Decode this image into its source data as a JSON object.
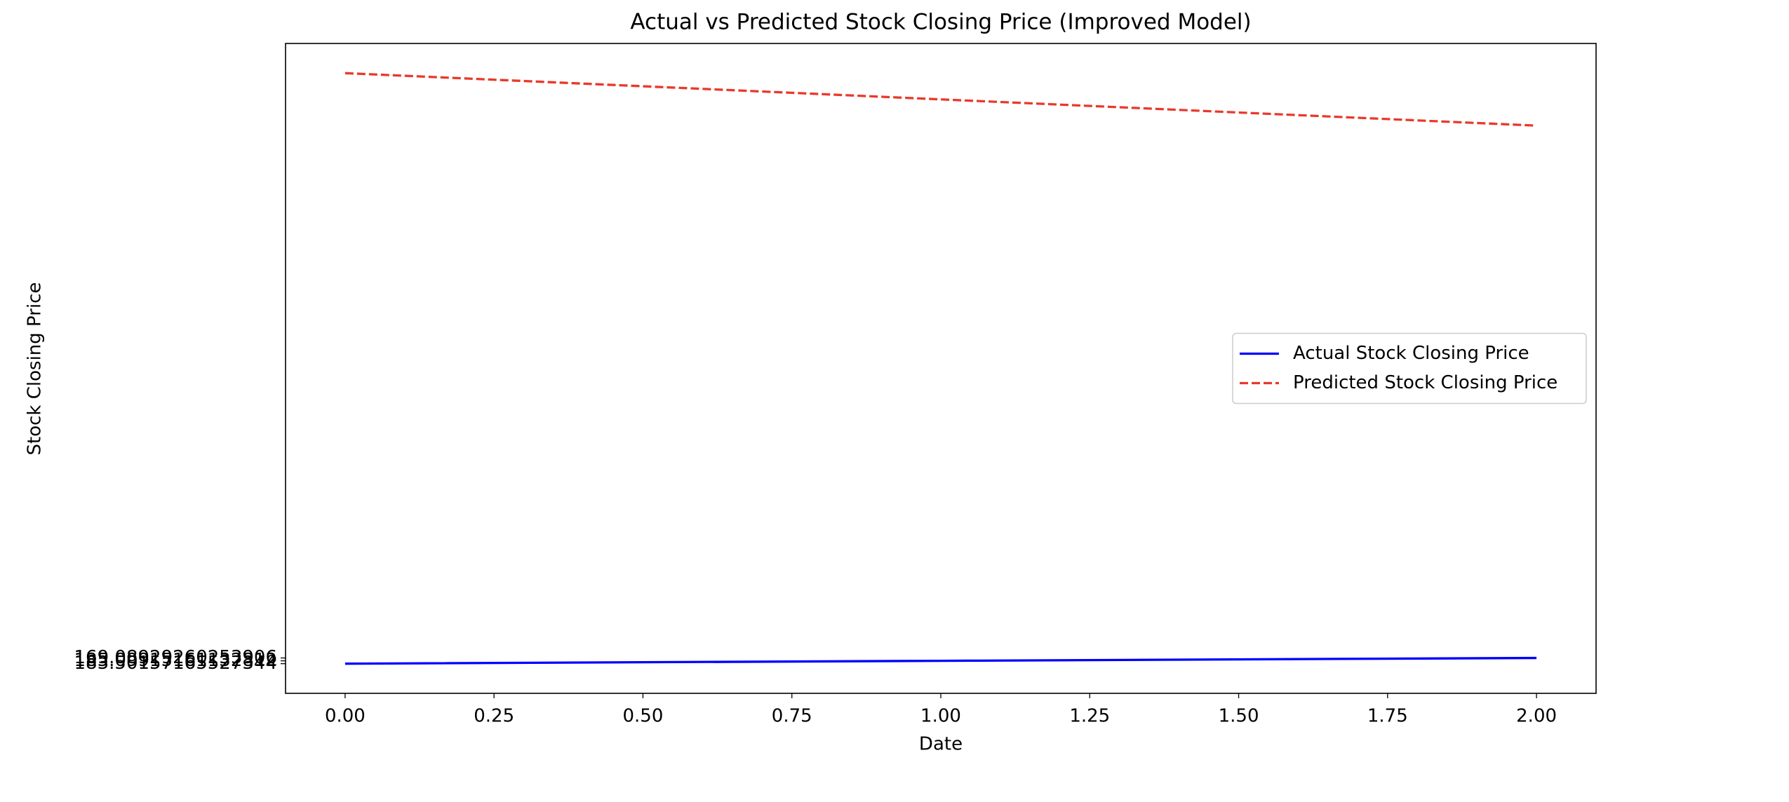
{
  "chart_data": {
    "type": "line",
    "title": "Actual vs Predicted Stock Closing Price (Improved Model)",
    "xlabel": "Date",
    "ylabel": "Stock Closing Price",
    "x": [
      0,
      1,
      2
    ],
    "series": [
      {
        "name": "Actual Stock Closing Price",
        "color": "#0000ff",
        "linestyle": "solid",
        "values": [
          0,
          1,
          2
        ]
      },
      {
        "name": "Predicted Stock Closing Price",
        "color": "#e8392b",
        "linestyle": "dashed",
        "values": [
          207.0,
          197.8,
          188.6
        ]
      }
    ],
    "xlim": [
      -0.1,
      2.1
    ],
    "xticks": [
      {
        "value": 0,
        "label": "0.00"
      },
      {
        "value": 0.25,
        "label": "0.25"
      },
      {
        "value": 0.5,
        "label": "0.50"
      },
      {
        "value": 0.75,
        "label": "0.75"
      },
      {
        "value": 1,
        "label": "1.00"
      },
      {
        "value": 1.25,
        "label": "1.25"
      },
      {
        "value": 1.5,
        "label": "1.50"
      },
      {
        "value": 1.75,
        "label": "1.75"
      },
      {
        "value": 2,
        "label": "2.00"
      }
    ],
    "ylim": [
      -10.4,
      217.4
    ],
    "yticks": [
      {
        "value": 0,
        "label": "183.50157165527344"
      },
      {
        "value": 1,
        "label": "185.09915161132812"
      },
      {
        "value": 2,
        "label": "169.08929260253906"
      }
    ],
    "legend_loc": "center right",
    "grid": false
  }
}
